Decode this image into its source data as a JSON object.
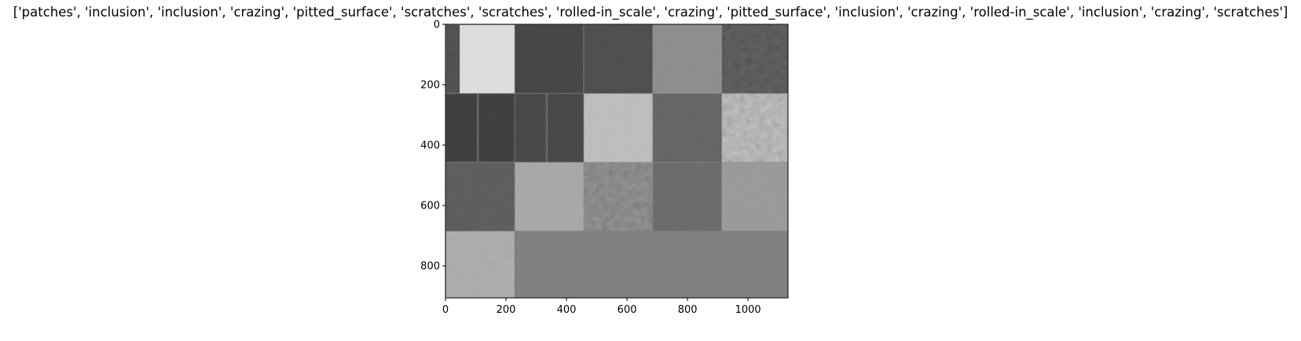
{
  "figure": {
    "title": "['patches', 'inclusion', 'inclusion', 'crazing', 'pitted_surface', 'scratches', 'scratches', 'rolled-in_scale', 'crazing', 'pitted_surface', 'inclusion', 'crazing', 'rolled-in_scale', 'inclusion', 'crazing', 'scratches']"
  },
  "axes": {
    "x_ticks": [
      "0",
      "200",
      "400",
      "600",
      "800",
      "1000"
    ],
    "y_ticks": [
      "0",
      "200",
      "400",
      "600",
      "800"
    ]
  },
  "image_grid": {
    "columns": 5,
    "tiles": [
      {
        "label": "patches",
        "tone": "#dcdcdc",
        "texture": "patches"
      },
      {
        "label": "inclusion",
        "tone": "#474747",
        "texture": "smooth"
      },
      {
        "label": "inclusion",
        "tone": "#505050",
        "texture": "smooth"
      },
      {
        "label": "crazing",
        "tone": "#8e8e8e",
        "texture": "grain"
      },
      {
        "label": "pitted_surface",
        "tone": "#5c5c5c",
        "texture": "spots"
      },
      {
        "label": "scratches",
        "tone": "#404040",
        "texture": "scratch"
      },
      {
        "label": "scratches",
        "tone": "#494949",
        "texture": "scratch"
      },
      {
        "label": "rolled-in_scale",
        "tone": "#bdbdbd",
        "texture": "grain"
      },
      {
        "label": "crazing",
        "tone": "#666666",
        "texture": "grain"
      },
      {
        "label": "pitted_surface",
        "tone": "#b4b4b4",
        "texture": "spots"
      },
      {
        "label": "inclusion",
        "tone": "#5e5e5e",
        "texture": "smooth"
      },
      {
        "label": "crazing",
        "tone": "#a8a8a8",
        "texture": "grain"
      },
      {
        "label": "rolled-in_scale",
        "tone": "#8a8a8a",
        "texture": "spots"
      },
      {
        "label": "inclusion",
        "tone": "#6c6c6c",
        "texture": "smooth"
      },
      {
        "label": "crazing",
        "tone": "#9a9a9a",
        "texture": "grain"
      },
      {
        "label": "scratches",
        "tone": "#acacac",
        "texture": "smooth"
      }
    ],
    "padding_tone": "#808080"
  }
}
